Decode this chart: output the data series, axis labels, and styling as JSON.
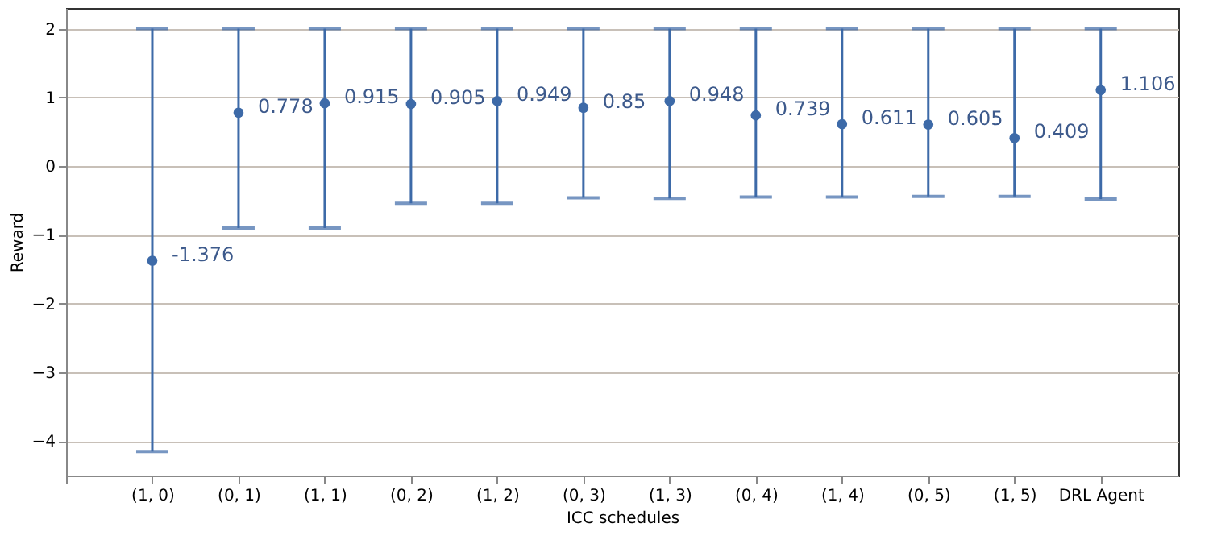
{
  "chart_data": {
    "type": "scatter",
    "xlabel": "ICC schedules",
    "ylabel": "Reward",
    "categories": [
      "(1, 0)",
      "(0, 1)",
      "(1, 1)",
      "(0, 2)",
      "(1, 2)",
      "(0, 3)",
      "(1, 3)",
      "(0, 4)",
      "(1, 4)",
      "(0, 5)",
      "(1, 5)",
      "DRL Agent"
    ],
    "values": [
      -1.376,
      0.778,
      0.915,
      0.905,
      0.949,
      0.85,
      0.948,
      0.739,
      0.611,
      0.605,
      0.409,
      1.106
    ],
    "errors": [
      [
        -4.15,
        2
      ],
      [
        -0.9,
        2
      ],
      [
        -0.9,
        2
      ],
      [
        -0.54,
        2
      ],
      [
        -0.54,
        2
      ],
      [
        -0.46,
        2
      ],
      [
        -0.47,
        2
      ],
      [
        -0.45,
        2
      ],
      [
        -0.45,
        2
      ],
      [
        -0.44,
        2
      ],
      [
        -0.44,
        2
      ],
      [
        -0.48,
        2
      ]
    ],
    "data_labels": true,
    "marker": "circle",
    "color": "#3d6aa8",
    "ylim": [
      -4.5,
      2.3
    ],
    "yticks": [
      -4,
      -3,
      -2,
      -1,
      0,
      1,
      2
    ],
    "grid": "y"
  }
}
